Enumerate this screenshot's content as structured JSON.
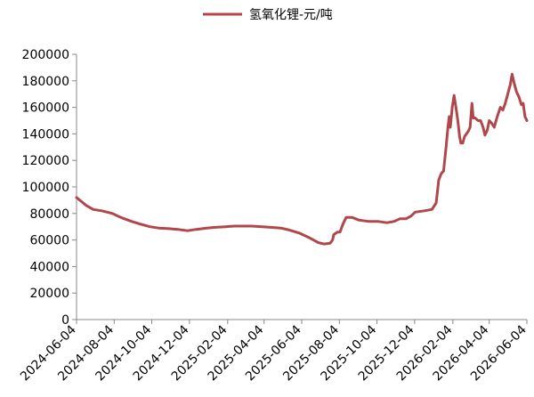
{
  "chart_data": {
    "type": "line",
    "title": "",
    "xlabel": "",
    "ylabel": "",
    "ylim": [
      0,
      200000
    ],
    "yticks": [
      0,
      20000,
      40000,
      60000,
      80000,
      100000,
      120000,
      140000,
      160000,
      180000,
      200000
    ],
    "xticks": [
      "2024-06-04",
      "2024-08-04",
      "2024-10-04",
      "2024-12-04",
      "2025-02-04",
      "2025-04-04",
      "2025-06-04",
      "2025-08-04",
      "2025-10-04",
      "2025-12-04",
      "2026-02-04",
      "2026-04-04",
      "2026-06-04"
    ],
    "grid": false,
    "legend_position": "top",
    "series": [
      {
        "name": "氢氧化锂-元/吨",
        "color": "#b0484b",
        "points": [
          [
            "2024-06-04",
            92000
          ],
          [
            "2024-06-12",
            89000
          ],
          [
            "2024-06-20",
            86000
          ],
          [
            "2024-07-01",
            83000
          ],
          [
            "2024-07-15",
            82000
          ],
          [
            "2024-08-01",
            80000
          ],
          [
            "2024-08-15",
            77000
          ],
          [
            "2024-09-01",
            74000
          ],
          [
            "2024-09-15",
            72000
          ],
          [
            "2024-10-01",
            70000
          ],
          [
            "2024-10-15",
            69000
          ],
          [
            "2024-11-01",
            68500
          ],
          [
            "2024-11-15",
            68000
          ],
          [
            "2024-12-01",
            67000
          ],
          [
            "2024-12-15",
            68000
          ],
          [
            "2025-01-01",
            69000
          ],
          [
            "2025-01-15",
            69500
          ],
          [
            "2025-02-01",
            70000
          ],
          [
            "2025-02-15",
            70500
          ],
          [
            "2025-03-01",
            70500
          ],
          [
            "2025-03-15",
            70500
          ],
          [
            "2025-04-01",
            70000
          ],
          [
            "2025-04-15",
            69500
          ],
          [
            "2025-05-01",
            69000
          ],
          [
            "2025-05-15",
            67500
          ],
          [
            "2025-06-01",
            65000
          ],
          [
            "2025-06-15",
            62000
          ],
          [
            "2025-07-01",
            58000
          ],
          [
            "2025-07-10",
            57000
          ],
          [
            "2025-07-20",
            57500
          ],
          [
            "2025-07-24",
            60000
          ],
          [
            "2025-07-26",
            64000
          ],
          [
            "2025-08-01",
            66000
          ],
          [
            "2025-08-05",
            66000
          ],
          [
            "2025-08-10",
            72000
          ],
          [
            "2025-08-15",
            77000
          ],
          [
            "2025-08-25",
            77000
          ],
          [
            "2025-09-05",
            75000
          ],
          [
            "2025-09-20",
            74000
          ],
          [
            "2025-10-05",
            74000
          ],
          [
            "2025-10-20",
            73000
          ],
          [
            "2025-11-01",
            74000
          ],
          [
            "2025-11-10",
            76000
          ],
          [
            "2025-11-20",
            76000
          ],
          [
            "2025-11-28",
            78000
          ],
          [
            "2025-12-05",
            81000
          ],
          [
            "2025-12-20",
            82000
          ],
          [
            "2026-01-01",
            83000
          ],
          [
            "2026-01-08",
            88000
          ],
          [
            "2026-01-12",
            105000
          ],
          [
            "2026-01-16",
            110000
          ],
          [
            "2026-01-20",
            112000
          ],
          [
            "2026-01-24",
            130000
          ],
          [
            "2026-01-27",
            145000
          ],
          [
            "2026-01-29",
            153000
          ],
          [
            "2026-01-31",
            145000
          ],
          [
            "2026-02-03",
            160000
          ],
          [
            "2026-02-06",
            169000
          ],
          [
            "2026-02-09",
            160000
          ],
          [
            "2026-02-12",
            150000
          ],
          [
            "2026-02-15",
            138000
          ],
          [
            "2026-02-17",
            133000
          ],
          [
            "2026-02-20",
            133000
          ],
          [
            "2026-02-23",
            138000
          ],
          [
            "2026-02-26",
            140000
          ],
          [
            "2026-03-01",
            142000
          ],
          [
            "2026-03-04",
            145000
          ],
          [
            "2026-03-07",
            163000
          ],
          [
            "2026-03-09",
            152000
          ],
          [
            "2026-03-12",
            152000
          ],
          [
            "2026-03-17",
            150000
          ],
          [
            "2026-03-21",
            150000
          ],
          [
            "2026-03-25",
            145000
          ],
          [
            "2026-03-28",
            139000
          ],
          [
            "2026-04-01",
            143000
          ],
          [
            "2026-04-04",
            150000
          ],
          [
            "2026-04-08",
            148000
          ],
          [
            "2026-04-12",
            145000
          ],
          [
            "2026-04-17",
            153000
          ],
          [
            "2026-04-22",
            160000
          ],
          [
            "2026-04-26",
            158000
          ],
          [
            "2026-04-30",
            163000
          ],
          [
            "2026-05-04",
            170000
          ],
          [
            "2026-05-08",
            177000
          ],
          [
            "2026-05-11",
            185000
          ],
          [
            "2026-05-14",
            179000
          ],
          [
            "2026-05-18",
            172000
          ],
          [
            "2026-05-22",
            168000
          ],
          [
            "2026-05-26",
            162000
          ],
          [
            "2026-05-29",
            163000
          ],
          [
            "2026-06-01",
            153000
          ],
          [
            "2026-06-04",
            150000
          ]
        ]
      }
    ]
  }
}
